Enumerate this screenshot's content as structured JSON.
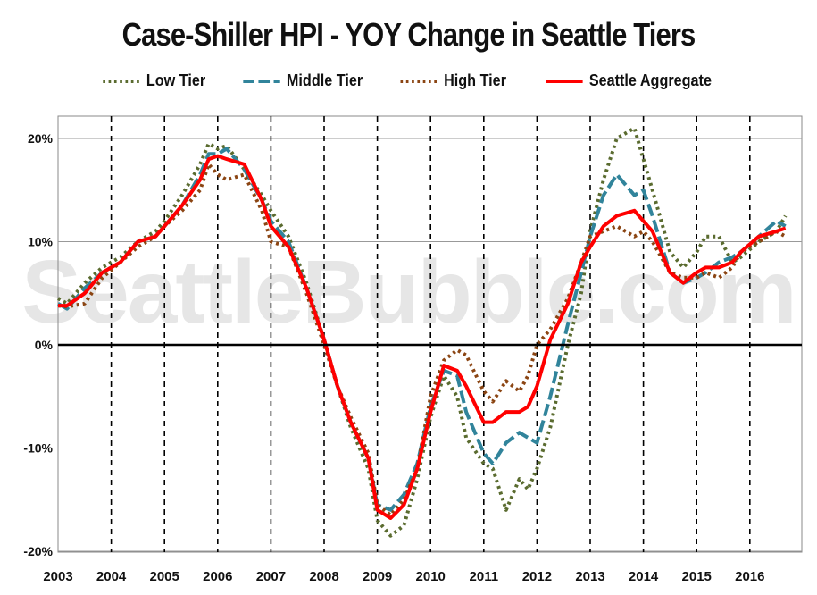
{
  "watermark": "SeattleBubble.com",
  "chart_data": {
    "type": "line",
    "title": "Case-Shiller HPI - YOY Change in Seattle Tiers",
    "xlabel": "",
    "ylabel": "",
    "xlim": [
      2003,
      2016.9
    ],
    "ylim": [
      -20,
      22
    ],
    "x_ticks": [
      "2003",
      "2004",
      "2005",
      "2006",
      "2007",
      "2008",
      "2009",
      "2010",
      "2011",
      "2012",
      "2013",
      "2014",
      "2015",
      "2016"
    ],
    "y_ticks": [
      {
        "value": 20,
        "label": "20%"
      },
      {
        "value": 10,
        "label": "10%"
      },
      {
        "value": 0,
        "label": "0%"
      },
      {
        "value": -10,
        "label": "-10%"
      },
      {
        "value": -20,
        "label": "-20%"
      }
    ],
    "legend_position": "top-center",
    "series": [
      {
        "name": "Low Tier",
        "color": "#5a6b2f",
        "style": "dotted",
        "points": [
          [
            2003.0,
            4.5
          ],
          [
            2003.17,
            4.0
          ],
          [
            2003.5,
            6.0
          ],
          [
            2003.83,
            7.5
          ],
          [
            2004.17,
            8.5
          ],
          [
            2004.5,
            10.0
          ],
          [
            2004.83,
            11.0
          ],
          [
            2005.0,
            12.0
          ],
          [
            2005.33,
            14.5
          ],
          [
            2005.67,
            17.5
          ],
          [
            2005.83,
            19.5
          ],
          [
            2006.0,
            19.0
          ],
          [
            2006.17,
            19.3
          ],
          [
            2006.5,
            17.0
          ],
          [
            2006.83,
            14.5
          ],
          [
            2007.0,
            13.0
          ],
          [
            2007.33,
            10.5
          ],
          [
            2007.67,
            6.0
          ],
          [
            2008.0,
            0.5
          ],
          [
            2008.25,
            -4.0
          ],
          [
            2008.5,
            -8.0
          ],
          [
            2008.83,
            -12.0
          ],
          [
            2009.0,
            -17.0
          ],
          [
            2009.25,
            -18.5
          ],
          [
            2009.5,
            -17.5
          ],
          [
            2009.75,
            -13.0
          ],
          [
            2010.0,
            -7.0
          ],
          [
            2010.25,
            -3.0
          ],
          [
            2010.5,
            -5.0
          ],
          [
            2010.67,
            -9.0
          ],
          [
            2011.0,
            -11.5
          ],
          [
            2011.17,
            -12.0
          ],
          [
            2011.42,
            -16.0
          ],
          [
            2011.67,
            -13.0
          ],
          [
            2011.83,
            -14.0
          ],
          [
            2012.0,
            -12.0
          ],
          [
            2012.25,
            -8.0
          ],
          [
            2012.58,
            0.0
          ],
          [
            2012.83,
            5.0
          ],
          [
            2013.0,
            11.0
          ],
          [
            2013.25,
            16.0
          ],
          [
            2013.5,
            20.0
          ],
          [
            2013.83,
            21.0
          ],
          [
            2014.0,
            18.0
          ],
          [
            2014.17,
            15.0
          ],
          [
            2014.5,
            9.0
          ],
          [
            2014.75,
            7.5
          ],
          [
            2015.0,
            9.0
          ],
          [
            2015.17,
            10.5
          ],
          [
            2015.42,
            10.5
          ],
          [
            2015.67,
            8.0
          ],
          [
            2015.83,
            8.5
          ],
          [
            2016.17,
            10.0
          ],
          [
            2016.5,
            11.0
          ],
          [
            2016.67,
            12.5
          ]
        ]
      },
      {
        "name": "Middle Tier",
        "color": "#31849b",
        "style": "dashed",
        "points": [
          [
            2003.0,
            4.0
          ],
          [
            2003.17,
            3.5
          ],
          [
            2003.5,
            5.5
          ],
          [
            2003.83,
            7.0
          ],
          [
            2004.17,
            8.0
          ],
          [
            2004.5,
            10.0
          ],
          [
            2004.83,
            10.5
          ],
          [
            2005.0,
            11.5
          ],
          [
            2005.33,
            13.5
          ],
          [
            2005.67,
            16.5
          ],
          [
            2005.83,
            18.5
          ],
          [
            2006.0,
            18.5
          ],
          [
            2006.17,
            19.0
          ],
          [
            2006.5,
            17.0
          ],
          [
            2006.83,
            14.0
          ],
          [
            2007.0,
            12.0
          ],
          [
            2007.33,
            10.0
          ],
          [
            2007.67,
            5.5
          ],
          [
            2008.0,
            0.5
          ],
          [
            2008.25,
            -4.0
          ],
          [
            2008.5,
            -7.5
          ],
          [
            2008.83,
            -11.0
          ],
          [
            2009.0,
            -15.5
          ],
          [
            2009.25,
            -16.0
          ],
          [
            2009.5,
            -14.5
          ],
          [
            2009.75,
            -11.5
          ],
          [
            2010.0,
            -6.0
          ],
          [
            2010.25,
            -2.5
          ],
          [
            2010.5,
            -3.0
          ],
          [
            2010.67,
            -6.5
          ],
          [
            2011.0,
            -10.5
          ],
          [
            2011.17,
            -11.5
          ],
          [
            2011.42,
            -9.5
          ],
          [
            2011.67,
            -8.5
          ],
          [
            2011.83,
            -9.0
          ],
          [
            2012.0,
            -9.5
          ],
          [
            2012.25,
            -5.0
          ],
          [
            2012.58,
            2.0
          ],
          [
            2012.83,
            7.0
          ],
          [
            2013.0,
            10.5
          ],
          [
            2013.25,
            14.5
          ],
          [
            2013.5,
            16.5
          ],
          [
            2013.83,
            14.5
          ],
          [
            2014.0,
            15.0
          ],
          [
            2014.17,
            12.5
          ],
          [
            2014.5,
            7.0
          ],
          [
            2014.75,
            6.0
          ],
          [
            2015.0,
            6.5
          ],
          [
            2015.17,
            7.0
          ],
          [
            2015.42,
            8.0
          ],
          [
            2015.67,
            8.5
          ],
          [
            2015.83,
            9.0
          ],
          [
            2016.17,
            10.5
          ],
          [
            2016.5,
            12.0
          ],
          [
            2016.67,
            11.5
          ]
        ]
      },
      {
        "name": "High Tier",
        "color": "#8b4513",
        "style": "dotted",
        "points": [
          [
            2003.0,
            3.8
          ],
          [
            2003.17,
            3.7
          ],
          [
            2003.5,
            4.0
          ],
          [
            2003.83,
            6.5
          ],
          [
            2004.17,
            8.0
          ],
          [
            2004.5,
            9.5
          ],
          [
            2004.83,
            10.5
          ],
          [
            2005.0,
            11.5
          ],
          [
            2005.33,
            13.0
          ],
          [
            2005.67,
            15.0
          ],
          [
            2005.83,
            17.5
          ],
          [
            2006.0,
            16.5
          ],
          [
            2006.17,
            16.0
          ],
          [
            2006.5,
            16.5
          ],
          [
            2006.83,
            13.0
          ],
          [
            2007.0,
            10.0
          ],
          [
            2007.33,
            9.5
          ],
          [
            2007.67,
            5.0
          ],
          [
            2008.0,
            0.0
          ],
          [
            2008.25,
            -4.0
          ],
          [
            2008.5,
            -7.0
          ],
          [
            2008.83,
            -10.5
          ],
          [
            2009.0,
            -15.5
          ],
          [
            2009.25,
            -16.5
          ],
          [
            2009.5,
            -15.0
          ],
          [
            2009.75,
            -12.0
          ],
          [
            2010.0,
            -5.0
          ],
          [
            2010.25,
            -1.5
          ],
          [
            2010.5,
            -0.5
          ],
          [
            2010.67,
            -1.0
          ],
          [
            2011.0,
            -4.5
          ],
          [
            2011.17,
            -5.5
          ],
          [
            2011.42,
            -3.5
          ],
          [
            2011.67,
            -4.5
          ],
          [
            2011.83,
            -3.0
          ],
          [
            2012.0,
            0.0
          ],
          [
            2012.25,
            1.5
          ],
          [
            2012.58,
            4.5
          ],
          [
            2012.83,
            8.0
          ],
          [
            2013.0,
            10.5
          ],
          [
            2013.25,
            11.0
          ],
          [
            2013.5,
            11.5
          ],
          [
            2013.83,
            10.5
          ],
          [
            2014.0,
            11.0
          ],
          [
            2014.17,
            10.0
          ],
          [
            2014.5,
            7.0
          ],
          [
            2014.75,
            6.5
          ],
          [
            2015.0,
            6.5
          ],
          [
            2015.17,
            7.0
          ],
          [
            2015.42,
            6.5
          ],
          [
            2015.67,
            7.5
          ],
          [
            2015.83,
            9.0
          ],
          [
            2016.17,
            10.0
          ],
          [
            2016.5,
            11.0
          ],
          [
            2016.67,
            10.5
          ]
        ]
      },
      {
        "name": "Seattle Aggregate",
        "color": "#ff0000",
        "style": "solid",
        "points": [
          [
            2003.0,
            3.8
          ],
          [
            2003.17,
            3.8
          ],
          [
            2003.5,
            5.0
          ],
          [
            2003.83,
            7.0
          ],
          [
            2004.17,
            8.0
          ],
          [
            2004.5,
            10.0
          ],
          [
            2004.83,
            10.5
          ],
          [
            2005.0,
            11.5
          ],
          [
            2005.33,
            13.5
          ],
          [
            2005.67,
            16.0
          ],
          [
            2005.83,
            18.0
          ],
          [
            2006.0,
            18.3
          ],
          [
            2006.17,
            18.0
          ],
          [
            2006.5,
            17.5
          ],
          [
            2006.83,
            14.0
          ],
          [
            2007.0,
            11.5
          ],
          [
            2007.33,
            9.5
          ],
          [
            2007.67,
            5.5
          ],
          [
            2008.0,
            0.5
          ],
          [
            2008.25,
            -4.0
          ],
          [
            2008.5,
            -7.5
          ],
          [
            2008.83,
            -11.0
          ],
          [
            2009.0,
            -16.0
          ],
          [
            2009.25,
            -16.8
          ],
          [
            2009.5,
            -15.5
          ],
          [
            2009.75,
            -12.0
          ],
          [
            2010.0,
            -6.5
          ],
          [
            2010.25,
            -2.0
          ],
          [
            2010.5,
            -2.5
          ],
          [
            2010.67,
            -4.0
          ],
          [
            2011.0,
            -7.5
          ],
          [
            2011.17,
            -7.5
          ],
          [
            2011.42,
            -6.5
          ],
          [
            2011.67,
            -6.5
          ],
          [
            2011.83,
            -6.0
          ],
          [
            2012.0,
            -4.0
          ],
          [
            2012.25,
            0.5
          ],
          [
            2012.58,
            4.0
          ],
          [
            2012.83,
            8.0
          ],
          [
            2013.0,
            9.5
          ],
          [
            2013.25,
            11.5
          ],
          [
            2013.5,
            12.5
          ],
          [
            2013.83,
            13.0
          ],
          [
            2014.0,
            12.0
          ],
          [
            2014.17,
            11.0
          ],
          [
            2014.5,
            7.0
          ],
          [
            2014.75,
            6.0
          ],
          [
            2015.0,
            7.0
          ],
          [
            2015.17,
            7.5
          ],
          [
            2015.42,
            7.5
          ],
          [
            2015.67,
            8.0
          ],
          [
            2015.83,
            9.0
          ],
          [
            2016.17,
            10.5
          ],
          [
            2016.5,
            11.0
          ],
          [
            2016.67,
            11.3
          ]
        ]
      }
    ]
  }
}
